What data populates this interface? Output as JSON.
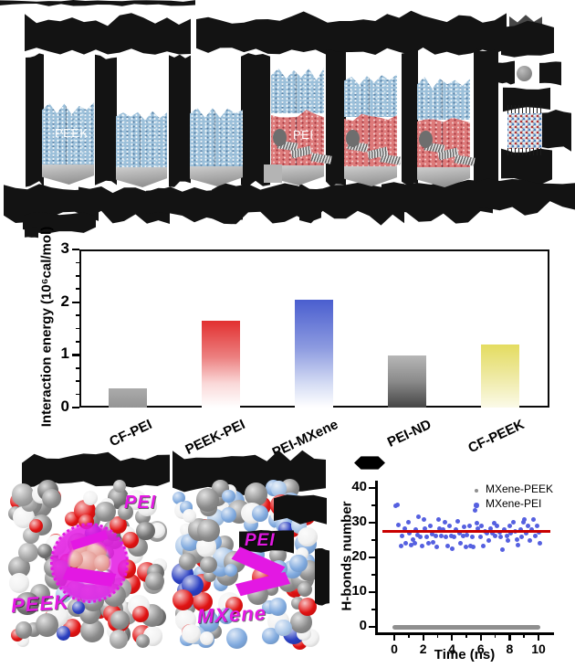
{
  "figure": {
    "top_panel": {
      "box1_label": "PEEK",
      "box4_label": "PEI",
      "note": "six molecular-dynamics simulation boxes on gray substrates, gray sphere and MXene lattice at right; surrounding caption text is illegible (rendered as black blobs)"
    },
    "molecular_panels": {
      "left": {
        "label_top": "PEI",
        "label_bottom": "PEEK"
      },
      "right": {
        "label_top": "PEI",
        "label_bottom": "MXene"
      }
    }
  },
  "colors": {
    "magenta_label": "#e318e3",
    "polymer_blue": "#9cc0da",
    "pei_red": "#dd7a7a",
    "substrate_gray": "#a8a8a8",
    "scatter_blue": "#5560e0",
    "scatter_gray": "#8f8f8f",
    "mean_line_red": "#c90000"
  },
  "chart_data": [
    {
      "type": "bar",
      "title": "",
      "ylabel": "Interaction energy (10⁶cal/mol)",
      "xlabel": "",
      "categories": [
        "CF-PEI",
        "PEEK-PEI",
        "PEI-MXene",
        "PEI-ND",
        "CF-PEEK"
      ],
      "values": [
        0.37,
        1.65,
        2.05,
        0.98,
        1.2
      ],
      "ylim": [
        0,
        3
      ],
      "yticks": [
        0,
        1,
        2,
        3
      ],
      "minor_tick_step": 0.25,
      "hatch": "diamond crosshatch on every bar",
      "bar_colors": [
        {
          "top": "#ababab",
          "bottom": "#949494"
        },
        {
          "top": "#e23030",
          "bottom": "#ffffff"
        },
        {
          "top": "#4a5ecf",
          "bottom": "#ffffff"
        },
        {
          "top": "#b7b7b7",
          "bottom": "#454545"
        },
        {
          "top": "#e4dc60",
          "bottom": "#fbfae8"
        }
      ],
      "grid": false,
      "frame": "full box"
    },
    {
      "type": "scatter",
      "title": "",
      "xlabel": "Time (ns)",
      "ylabel": "H-bonds number",
      "xlim": [
        -0.7,
        10.7
      ],
      "ylim": [
        -2,
        42
      ],
      "xticks": [
        0,
        2,
        4,
        6,
        8,
        10
      ],
      "yticks": [
        0,
        10,
        20,
        30,
        40
      ],
      "legend_position": "top-right",
      "mean_line": {
        "y": 27.4,
        "color": "#c90000",
        "x_range": [
          -0.8,
          10.8
        ]
      },
      "series": [
        {
          "name": "MXene-PEEK",
          "color": "#8f8f8f",
          "y_constant": 0,
          "x_range": [
            0,
            10
          ]
        },
        {
          "name": "MXene-PEI",
          "color": "#5560e0",
          "points": [
            [
              0.1,
              34.8
            ],
            [
              0.25,
              35.2
            ],
            [
              0.3,
              29.4
            ],
            [
              0.45,
              23.2
            ],
            [
              0.55,
              26.1
            ],
            [
              0.7,
              28.3
            ],
            [
              0.8,
              24.0
            ],
            [
              0.95,
              30.2
            ],
            [
              1.05,
              27.0
            ],
            [
              1.15,
              23.6
            ],
            [
              1.3,
              25.2
            ],
            [
              1.4,
              24.1
            ],
            [
              1.5,
              28.0
            ],
            [
              1.6,
              26.4
            ],
            [
              1.7,
              31.8
            ],
            [
              1.8,
              26.0
            ],
            [
              1.95,
              23.4
            ],
            [
              2.05,
              30.8
            ],
            [
              2.15,
              28.2
            ],
            [
              2.25,
              26.0
            ],
            [
              2.4,
              24.2
            ],
            [
              2.5,
              29.0
            ],
            [
              2.6,
              26.6
            ],
            [
              2.7,
              24.4
            ],
            [
              2.85,
              26.2
            ],
            [
              2.95,
              23.0
            ],
            [
              3.05,
              30.9
            ],
            [
              3.15,
              28.4
            ],
            [
              3.25,
              26.1
            ],
            [
              3.4,
              28.0
            ],
            [
              3.5,
              30.1
            ],
            [
              3.6,
              25.8
            ],
            [
              3.7,
              23.4
            ],
            [
              3.85,
              29.0
            ],
            [
              3.95,
              26.2
            ],
            [
              4.05,
              22.6
            ],
            [
              4.15,
              26.0
            ],
            [
              4.3,
              28.1
            ],
            [
              4.4,
              30.4
            ],
            [
              4.5,
              27.0
            ],
            [
              4.6,
              24.0
            ],
            [
              4.75,
              26.2
            ],
            [
              4.85,
              28.8
            ],
            [
              4.95,
              23.1
            ],
            [
              5.05,
              26.5
            ],
            [
              5.2,
              29.2
            ],
            [
              5.3,
              23.2
            ],
            [
              5.4,
              26.0
            ],
            [
              5.5,
              23.0
            ],
            [
              5.6,
              33.6
            ],
            [
              5.7,
              30.0
            ],
            [
              5.8,
              28.2
            ],
            [
              5.95,
              26.0
            ],
            [
              6.05,
              29.1
            ],
            [
              6.15,
              23.2
            ],
            [
              6.3,
              27.6
            ],
            [
              6.45,
              27.0
            ],
            [
              6.55,
              25.0
            ],
            [
              6.65,
              28.2
            ],
            [
              6.8,
              27.0
            ],
            [
              6.9,
              30.0
            ],
            [
              7.0,
              26.1
            ],
            [
              7.15,
              29.0
            ],
            [
              7.3,
              27.2
            ],
            [
              7.4,
              26.0
            ],
            [
              7.5,
              22.2
            ],
            [
              7.65,
              28.1
            ],
            [
              7.8,
              26.2
            ],
            [
              7.9,
              25.0
            ],
            [
              8.0,
              29.2
            ],
            [
              8.1,
              27.0
            ],
            [
              8.25,
              30.1
            ],
            [
              8.4,
              27.4
            ],
            [
              8.5,
              25.2
            ],
            [
              8.6,
              23.6
            ],
            [
              8.75,
              28.0
            ],
            [
              8.85,
              26.0
            ],
            [
              8.95,
              30.2
            ],
            [
              9.05,
              31.0
            ],
            [
              9.15,
              27.0
            ],
            [
              9.3,
              29.2
            ],
            [
              9.4,
              25.0
            ],
            [
              9.5,
              28.0
            ],
            [
              9.65,
              31.0
            ],
            [
              9.8,
              26.2
            ],
            [
              9.9,
              29.0
            ],
            [
              10.0,
              27.2
            ],
            [
              10.1,
              24.0
            ]
          ]
        }
      ]
    }
  ]
}
